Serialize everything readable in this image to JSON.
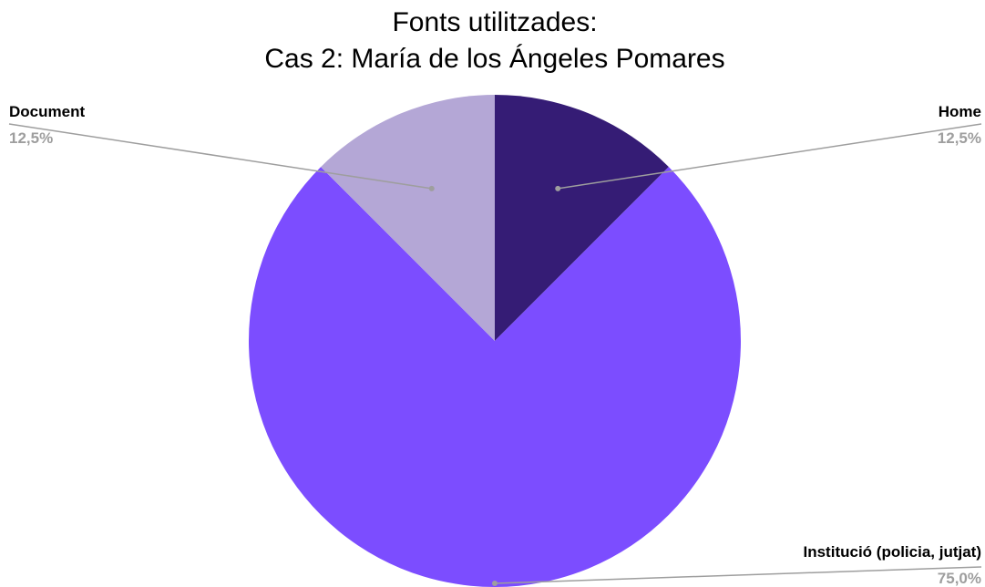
{
  "chart_data": {
    "type": "pie",
    "title_lines": [
      "Fonts utilitzades:",
      "Cas 2: María de los Ángeles Pomares"
    ],
    "slices": [
      {
        "label": "Home",
        "value": 12.5,
        "display": "12,5%",
        "color": "#351c75"
      },
      {
        "label": "Institució (policia, jutjat)",
        "value": 75.0,
        "display": "75,0%",
        "color": "#7c4dff"
      },
      {
        "label": "Document",
        "value": 12.5,
        "display": "12,5%",
        "color": "#b4a7d6"
      }
    ],
    "legend": "none",
    "start_angle": "12 o'clock",
    "direction": "clockwise"
  }
}
